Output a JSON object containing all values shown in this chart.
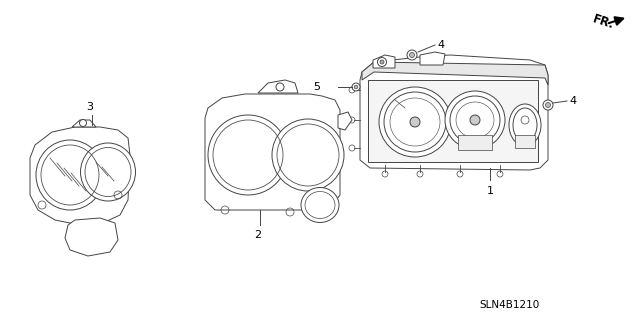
{
  "background_color": "#ffffff",
  "line_color": "#444444",
  "text_color": "#000000",
  "diagram_code": "SLN4B1210",
  "fr_label": "FR.",
  "figsize": [
    6.4,
    3.19
  ],
  "dpi": 100
}
